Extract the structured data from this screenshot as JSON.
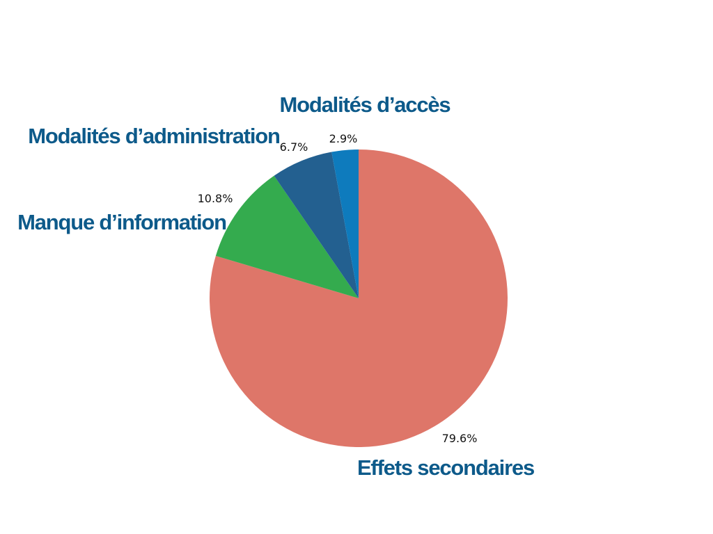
{
  "chart_data": {
    "type": "pie",
    "categories": [
      "Effets secondaires",
      "Manque d’information",
      "Modalités d’administration",
      "Modalités d’accès"
    ],
    "values": [
      79.6,
      10.8,
      6.7,
      2.9
    ],
    "value_labels": [
      "79.6%",
      "10.8%",
      "6.7%",
      "2.9%"
    ],
    "colors": [
      "#de7669",
      "#34ab4e",
      "#236090",
      "#0e7bbd"
    ],
    "start_angle_deg": 0,
    "direction": "clockwise",
    "legend": "none",
    "title": ""
  }
}
